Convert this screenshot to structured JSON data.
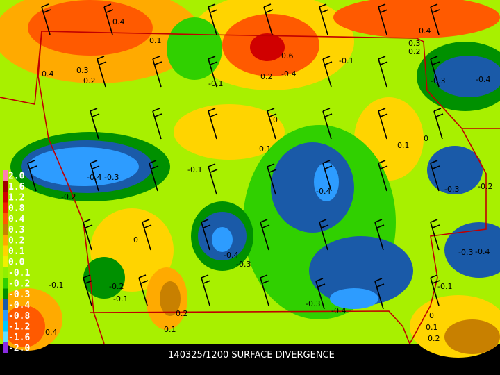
{
  "map": {
    "title": "140325/1200 SURFACE DIVERGENCE",
    "legend": [
      {
        "label": "2.0",
        "color": "#ff80b0"
      },
      {
        "label": "1.6",
        "color": "#a00000"
      },
      {
        "label": "1.2",
        "color": "#d00000"
      },
      {
        "label": "0.8",
        "color": "#f02000"
      },
      {
        "label": "0.4",
        "color": "#ff5a00"
      },
      {
        "label": "0.3",
        "color": "#c88000"
      },
      {
        "label": "0.2",
        "color": "#ffaa00"
      },
      {
        "label": "0.1",
        "color": "#ffd400"
      },
      {
        "label": "0.0",
        "color": "#f0f000"
      },
      {
        "label": "-0.1",
        "color": "#90f000"
      },
      {
        "label": "-0.2",
        "color": "#30d000"
      },
      {
        "label": "-0.3",
        "color": "#009000"
      },
      {
        "label": "-0.4",
        "color": "#1a5aa8"
      },
      {
        "label": "-0.8",
        "color": "#2d9cff"
      },
      {
        "label": "-1.2",
        "color": "#00c8ff"
      },
      {
        "label": "-1.6",
        "color": "#60e0ff"
      },
      {
        "label": "-2.0",
        "color": "#8a2be2"
      }
    ],
    "contour_labels": [
      "0.4",
      "0.1",
      "0.6",
      "0.2",
      "-0.4",
      "-0.1",
      "0.4",
      "0.3",
      "0.2",
      "-0.3",
      "-0.4",
      "0.3",
      "0.2",
      "0.4",
      "-0.1",
      "0",
      "0.1",
      "0.1",
      "0",
      "-0.1",
      "-0.4",
      "-0.3",
      "-0.2",
      "-0.4",
      "-0.3",
      "-0.2",
      "0",
      "-0.4",
      "-0.3",
      "-0.3",
      "-0.4",
      "-0.2",
      "-0.1",
      "-0.1",
      "-0.3",
      "-0.4",
      "-0.1",
      "0.2",
      "0.1",
      "0.4",
      "0",
      "0.1",
      "0.2"
    ]
  }
}
